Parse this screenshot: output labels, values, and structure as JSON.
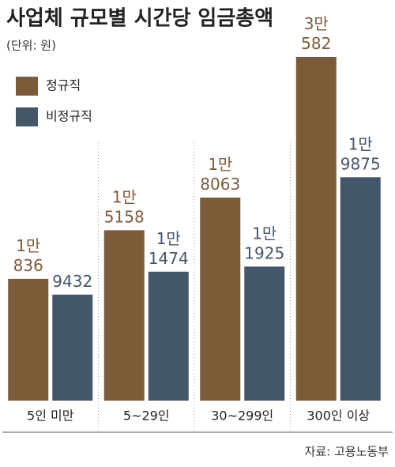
{
  "chart_data": {
    "type": "bar",
    "title": "사업체 규모별 시간당 임금총액",
    "subtitle": "(단위: 원)",
    "source": "자료: 고용노동부",
    "categories": [
      "5인 미만",
      "5~29인",
      "30~299인",
      "300인 이상"
    ],
    "series": [
      {
        "name": "정규직",
        "color": "#7c5b39",
        "values": [
          10836,
          15158,
          18063,
          30582
        ],
        "value_labels": [
          "1만\n836",
          "1만\n5158",
          "1만\n8063",
          "3만\n582"
        ]
      },
      {
        "name": "비정규직",
        "color": "#44566a",
        "values": [
          9432,
          11474,
          11925,
          19875
        ],
        "value_labels": [
          "9432",
          "1만\n1474",
          "1만\n1925",
          "1만\n9875"
        ]
      }
    ]
  }
}
